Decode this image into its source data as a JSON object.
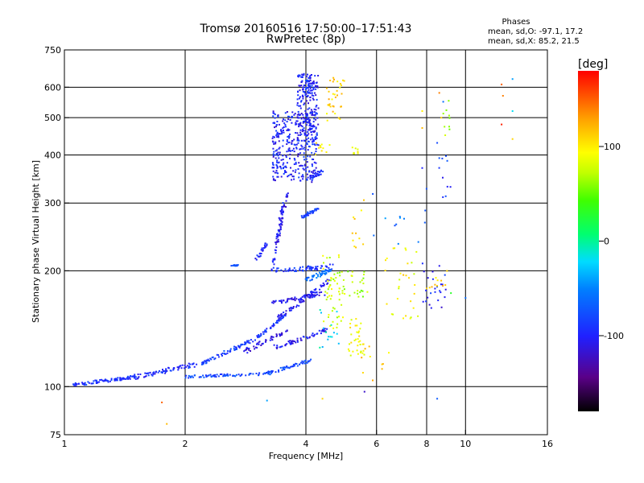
{
  "chart_data": {
    "type": "scatter",
    "title": "Tromsø 20160516 17:50:00–17:51:43",
    "subtitle": "RwPretec (8p)",
    "xlabel": "Frequency [MHz]",
    "ylabel": "Stationary phase Virtual Height [km]",
    "x_scale": "log",
    "y_scale": "log",
    "xlim": [
      1,
      16
    ],
    "ylim": [
      75,
      750
    ],
    "xticks": [
      {
        "v": 1,
        "label": "1"
      },
      {
        "v": 2,
        "label": "2"
      },
      {
        "v": 4,
        "label": "4"
      },
      {
        "v": 6,
        "label": "6"
      },
      {
        "v": 8,
        "label": "8"
      },
      {
        "v": 10,
        "label": "10"
      },
      {
        "v": 16,
        "label": "16"
      }
    ],
    "yticks": [
      {
        "v": 75,
        "label": "75"
      },
      {
        "v": 100,
        "label": "100"
      },
      {
        "v": 200,
        "label": "200"
      },
      {
        "v": 300,
        "label": "300"
      },
      {
        "v": 400,
        "label": "400"
      },
      {
        "v": 500,
        "label": "500"
      },
      {
        "v": 600,
        "label": "600"
      },
      {
        "v": 750,
        "label": "750"
      }
    ],
    "gridlines_x": [
      2,
      4,
      6,
      8,
      10
    ],
    "gridlines_y": [
      100,
      200,
      300,
      400,
      500,
      600
    ],
    "grid": true,
    "phase_info": {
      "heading": "Phases",
      "line_o": "mean, sd,O: -97.1, 17.2",
      "line_x": "mean, sd,X:  85.2, 21.5"
    },
    "colorbar": {
      "label": "[deg]",
      "range": [
        -180,
        180
      ],
      "ticks": [
        {
          "v": 100,
          "label": "100"
        },
        {
          "v": 0,
          "label": "0"
        },
        {
          "v": -100,
          "label": "-100"
        }
      ]
    },
    "series": [
      {
        "traces": [
          [
            1.05,
            101,
            1.5,
            106,
            18,
            -90,
            1
          ],
          [
            1.5,
            106,
            2.2,
            115,
            14,
            -95,
            1.6
          ],
          [
            2.2,
            115,
            3.0,
            133,
            14,
            -85,
            1.4
          ],
          [
            3.0,
            133,
            3.6,
            155,
            10,
            -90,
            1.2
          ],
          [
            2.0,
            106,
            3.2,
            108,
            14,
            -80,
            0.8
          ],
          [
            3.2,
            108,
            4.1,
            117,
            12,
            -80,
            1.2
          ],
          [
            2.8,
            123,
            3.6,
            140,
            10,
            -110,
            1.8
          ],
          [
            3.3,
            126,
            4.5,
            140,
            12,
            -105,
            1.8
          ],
          [
            3.4,
            150,
            4.6,
            190,
            14,
            -105,
            2.5
          ],
          [
            3.3,
            165,
            4.5,
            175,
            12,
            -105,
            2
          ],
          [
            3.35,
            200,
            4.7,
            205,
            12,
            -90,
            3
          ],
          [
            3.3,
            200,
            3.5,
            300,
            10,
            -100,
            4
          ],
          [
            3.4,
            240,
            3.6,
            320,
            8,
            -110,
            4
          ],
          [
            3.9,
            275,
            4.3,
            290,
            8,
            -85,
            3
          ],
          [
            4.1,
            350,
            4.4,
            362,
            6,
            -95,
            4
          ],
          [
            3.0,
            213,
            3.2,
            235,
            5,
            -100,
            3
          ],
          [
            2.6,
            206,
            2.7,
            207,
            3,
            -80,
            1
          ],
          [
            4.0,
            190,
            4.6,
            200,
            10,
            -60,
            3
          ]
        ]
      },
      {
        "clusters": [
          [
            3.3,
            4.25,
            340,
            520,
            330,
            -100
          ],
          [
            3.8,
            4.3,
            420,
            650,
            170,
            -100
          ],
          [
            3.9,
            4.2,
            560,
            650,
            50,
            -95
          ],
          [
            4.4,
            5.0,
            140,
            220,
            50,
            80
          ],
          [
            4.6,
            5.7,
            170,
            200,
            30,
            70
          ],
          [
            5.1,
            5.6,
            120,
            150,
            35,
            90
          ],
          [
            4.3,
            4.9,
            120,
            160,
            15,
            -20
          ],
          [
            6.3,
            7.8,
            150,
            230,
            30,
            90
          ],
          [
            7.8,
            9.0,
            160,
            220,
            25,
            -100
          ],
          [
            8.0,
            9.0,
            180,
            200,
            10,
            110
          ],
          [
            4.5,
            5.0,
            480,
            640,
            35,
            110
          ],
          [
            4.2,
            4.6,
            400,
            440,
            10,
            95
          ],
          [
            5.2,
            5.4,
            400,
            420,
            8,
            95
          ],
          [
            5.2,
            5.6,
            220,
            330,
            10,
            110
          ],
          [
            5.8,
            8.0,
            230,
            330,
            12,
            -60
          ],
          [
            5.5,
            6.5,
            100,
            130,
            10,
            110
          ],
          [
            8.5,
            9.2,
            300,
            400,
            10,
            -90
          ],
          [
            8.8,
            9.2,
            420,
            560,
            8,
            60
          ]
        ]
      },
      {
        "points": [
          [
            12.3,
            610,
            150
          ],
          [
            12.4,
            570,
            140
          ],
          [
            12.3,
            480,
            170
          ],
          [
            13.1,
            630,
            -40
          ],
          [
            13.1,
            520,
            -20
          ],
          [
            13.1,
            440,
            110
          ],
          [
            8.6,
            580,
            140
          ],
          [
            7.8,
            520,
            100
          ],
          [
            8.8,
            550,
            -60
          ],
          [
            8.7,
            500,
            110
          ],
          [
            7.8,
            470,
            120
          ],
          [
            8.5,
            430,
            -80
          ],
          [
            7.8,
            370,
            -100
          ],
          [
            8.9,
            450,
            80
          ],
          [
            1.75,
            91,
            150
          ],
          [
            1.8,
            80,
            120
          ],
          [
            3.2,
            92,
            -40
          ],
          [
            4.4,
            93,
            110
          ],
          [
            5.6,
            97,
            -120
          ],
          [
            8.5,
            93,
            -70
          ],
          [
            10.0,
            170,
            -60
          ],
          [
            9.2,
            175,
            30
          ],
          [
            8.0,
            180,
            110
          ],
          [
            7.0,
            195,
            120
          ],
          [
            5.5,
            287,
            95
          ],
          [
            6.8,
            235,
            -50
          ]
        ]
      }
    ]
  }
}
